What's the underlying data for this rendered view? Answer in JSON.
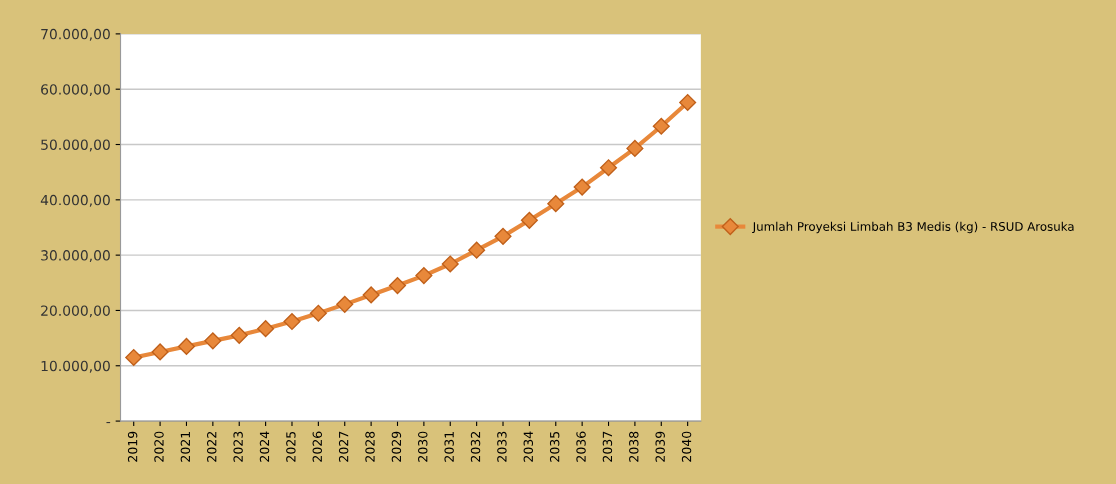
{
  "chart_data": {
    "type": "line",
    "categories": [
      "2019",
      "2020",
      "2021",
      "2022",
      "2023",
      "2024",
      "2025",
      "2026",
      "2027",
      "2028",
      "2029",
      "2030",
      "2031",
      "2032",
      "2033",
      "2034",
      "2035",
      "2036",
      "2037",
      "2038",
      "2039",
      "2040"
    ],
    "series": [
      {
        "name": "Jumlah Proyeksi Limbah B3 Medis (kg) - RSUD Arosuka",
        "color": "#e8883a",
        "values": [
          11500,
          12500,
          13500,
          14500,
          15500,
          16700,
          18000,
          19500,
          21100,
          22800,
          24500,
          26300,
          28400,
          30900,
          33400,
          36300,
          39300,
          42300,
          45800,
          49300,
          53300,
          57600
        ]
      }
    ],
    "ylim": [
      0,
      70000
    ],
    "yticks": [
      {
        "value": 0,
        "label": "-"
      },
      {
        "value": 10000,
        "label": "10.000,00"
      },
      {
        "value": 20000,
        "label": "20.000,00"
      },
      {
        "value": 30000,
        "label": "30.000,00"
      },
      {
        "value": 40000,
        "label": "40.000,00"
      },
      {
        "value": 50000,
        "label": "50.000,00"
      },
      {
        "value": 60000,
        "label": "60.000,00"
      },
      {
        "value": 70000,
        "label": "70.000,00"
      }
    ],
    "grid": "y",
    "legend": "right",
    "marker": "diamond",
    "line_style": "solid"
  }
}
